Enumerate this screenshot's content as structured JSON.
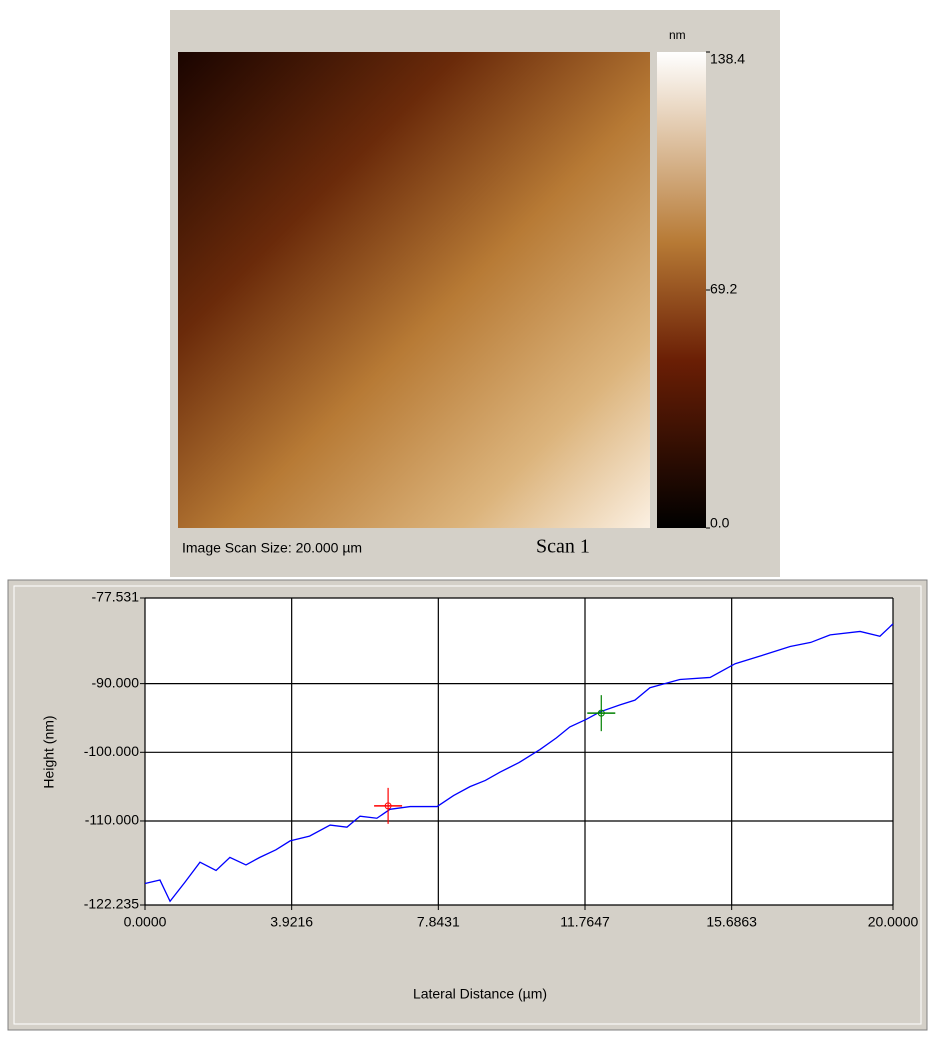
{
  "chart_data": [
    {
      "type": "image",
      "title": "Scan 1",
      "caption": "Image Scan Size:  20.000 µm",
      "colorbar_label": "nm",
      "zlim": [
        0,
        138.4
      ],
      "zticks": [
        {
          "value": 0,
          "label": "0.0"
        },
        69.2,
        138.4
      ]
    },
    {
      "type": "line",
      "xlabel": "Lateral Distance (µm)",
      "ylabel": "Height (nm)",
      "xlim": [
        0,
        20
      ],
      "ylim": [
        -122.235,
        -77.531
      ],
      "xticks": [
        {
          "value": 0,
          "label": "0.0000"
        },
        3.9216,
        7.8431,
        11.7647,
        15.6863,
        {
          "value": 20,
          "label": "20.0000"
        }
      ],
      "yticks": [
        -122.235,
        {
          "value": -110,
          "label": "-110.000"
        },
        {
          "value": -100,
          "label": "-100.000"
        },
        {
          "value": -90,
          "label": "-90.000"
        },
        -77.531
      ],
      "grid": true,
      "x": [
        0,
        0.4,
        0.67,
        1.07,
        1.47,
        1.9,
        2.27,
        2.7,
        3.07,
        3.5,
        3.88,
        4.4,
        4.95,
        5.4,
        5.75,
        6.2,
        6.55,
        7.09,
        7.81,
        8.25,
        8.69,
        9.1,
        9.49,
        10.0,
        10.56,
        11.0,
        11.36,
        11.8,
        12.17,
        12.7,
        13.1,
        13.5,
        14.3,
        15.11,
        15.78,
        16.44,
        17.25,
        17.8,
        18.32,
        19.12,
        19.65,
        20.0
      ],
      "series": [
        {
          "color": "#0000ff",
          "values": [
            -119.1,
            -118.6,
            -121.7,
            -118.9,
            -116.0,
            -117.2,
            -115.3,
            -116.4,
            -115.3,
            -114.2,
            -112.9,
            -112.2,
            -110.6,
            -110.9,
            -109.3,
            -109.6,
            -108.3,
            -107.9,
            -107.9,
            -106.3,
            -105.0,
            -104.1,
            -102.9,
            -101.5,
            -99.6,
            -97.9,
            -96.3,
            -95.2,
            -94.1,
            -93.1,
            -92.4,
            -90.6,
            -89.4,
            -89.1,
            -87.1,
            -86.0,
            -84.6,
            -84.0,
            -82.9,
            -82.4,
            -83.1,
            -81.3
          ]
        }
      ],
      "markers": [
        {
          "x": 6.5,
          "y": -107.8,
          "color": "#ff0000"
        },
        {
          "x": 12.2,
          "y": -94.3,
          "color": "#008000"
        }
      ]
    }
  ]
}
